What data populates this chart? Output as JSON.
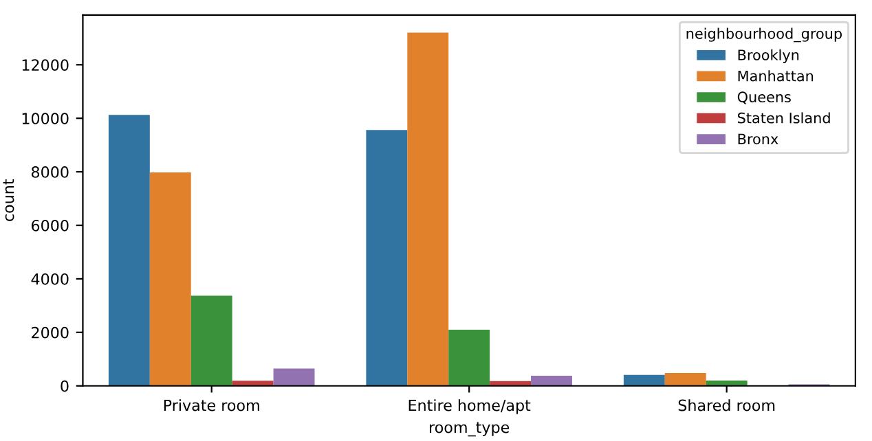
{
  "chart_data": {
    "type": "bar",
    "xlabel": "room_type",
    "ylabel": "count",
    "legend_title": "neighbourhood_group",
    "categories": [
      "Private room",
      "Entire home/apt",
      "Shared room"
    ],
    "series": [
      {
        "name": "Brooklyn",
        "color": "#3274a1",
        "values": [
          10130,
          9560,
          410
        ]
      },
      {
        "name": "Manhattan",
        "color": "#e1812c",
        "values": [
          7980,
          13200,
          480
        ]
      },
      {
        "name": "Queens",
        "color": "#3a923a",
        "values": [
          3370,
          2100,
          200
        ]
      },
      {
        "name": "Staten Island",
        "color": "#c03d3e",
        "values": [
          190,
          180,
          null
        ]
      },
      {
        "name": "Bronx",
        "color": "#9372b2",
        "values": [
          650,
          380,
          60
        ]
      }
    ],
    "ylim": [
      0,
      13860
    ],
    "yticks": [
      0,
      2000,
      4000,
      6000,
      8000,
      10000,
      12000
    ],
    "grid": false,
    "legend": "top right"
  }
}
